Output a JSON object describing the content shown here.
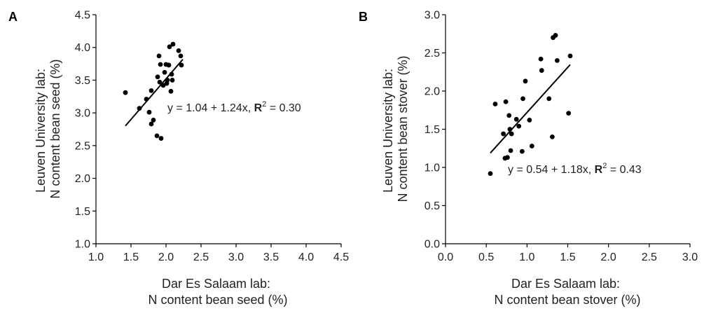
{
  "chart_data": [
    {
      "type": "scatter",
      "panel": "A",
      "xlabel_lines": [
        "Dar Es Salaam lab:",
        "N content bean seed (%)"
      ],
      "ylabel_lines": [
        "Leuven University lab:",
        "N content bean seed (%)"
      ],
      "xlim": [
        1.0,
        4.5
      ],
      "ylim": [
        1.0,
        4.5
      ],
      "xticks": [
        "1.0",
        "1.5",
        "2.0",
        "2.5",
        "3.0",
        "3.5",
        "4.0",
        "4.5"
      ],
      "yticks": [
        "1.0",
        "1.5",
        "2.0",
        "2.5",
        "3.0",
        "3.5",
        "4.0",
        "4.5"
      ],
      "grid": false,
      "points": [
        [
          1.42,
          3.31
        ],
        [
          1.62,
          3.07
        ],
        [
          1.72,
          3.21
        ],
        [
          1.76,
          3.01
        ],
        [
          1.79,
          3.34
        ],
        [
          1.79,
          2.83
        ],
        [
          1.82,
          2.89
        ],
        [
          1.87,
          2.65
        ],
        [
          1.88,
          3.55
        ],
        [
          1.9,
          3.87
        ],
        [
          1.91,
          3.47
        ],
        [
          1.92,
          3.74
        ],
        [
          1.93,
          2.61
        ],
        [
          1.96,
          3.42
        ],
        [
          1.98,
          3.62
        ],
        [
          2.0,
          3.74
        ],
        [
          2.01,
          3.45
        ],
        [
          2.02,
          3.5
        ],
        [
          2.04,
          3.73
        ],
        [
          2.05,
          4.01
        ],
        [
          2.07,
          3.33
        ],
        [
          2.08,
          3.59
        ],
        [
          2.09,
          3.5
        ],
        [
          2.1,
          4.05
        ],
        [
          2.18,
          3.95
        ],
        [
          2.21,
          3.87
        ],
        [
          2.22,
          3.73
        ]
      ],
      "fit_line": {
        "intercept": 1.04,
        "slope": 1.24,
        "x_range": [
          1.42,
          2.24
        ]
      },
      "annotation": {
        "prefix": "y = 1.04 + 1.24x, ",
        "r2_label": "R",
        "r2_sup": "2",
        "r2_value": " = 0.30"
      }
    },
    {
      "type": "scatter",
      "panel": "B",
      "xlabel_lines": [
        "Dar Es Salaam lab:",
        "N content bean stover (%)"
      ],
      "ylabel_lines": [
        "Leuven University lab:",
        "N content bean stover (%)"
      ],
      "xlim": [
        0.0,
        3.0
      ],
      "ylim": [
        0.0,
        3.0
      ],
      "xticks": [
        "0.0",
        "0.5",
        "1.0",
        "1.5",
        "2.0",
        "2.5",
        "3.0"
      ],
      "yticks": [
        "0.0",
        "0.5",
        "1.0",
        "1.5",
        "2.0",
        "2.5",
        "3.0"
      ],
      "grid": false,
      "points": [
        [
          0.55,
          0.92
        ],
        [
          0.61,
          1.83
        ],
        [
          0.71,
          1.44
        ],
        [
          0.73,
          1.12
        ],
        [
          0.74,
          1.86
        ],
        [
          0.76,
          1.13
        ],
        [
          0.78,
          1.68
        ],
        [
          0.79,
          1.5
        ],
        [
          0.8,
          1.22
        ],
        [
          0.81,
          1.44
        ],
        [
          0.87,
          1.63
        ],
        [
          0.9,
          1.54
        ],
        [
          0.94,
          1.21
        ],
        [
          0.95,
          1.9
        ],
        [
          0.98,
          2.13
        ],
        [
          1.03,
          1.62
        ],
        [
          1.06,
          1.28
        ],
        [
          1.17,
          2.42
        ],
        [
          1.18,
          2.27
        ],
        [
          1.27,
          1.9
        ],
        [
          1.31,
          1.4
        ],
        [
          1.32,
          2.7
        ],
        [
          1.35,
          2.73
        ],
        [
          1.37,
          2.4
        ],
        [
          1.51,
          1.71
        ],
        [
          1.53,
          2.46
        ]
      ],
      "fit_line": {
        "intercept": 0.54,
        "slope": 1.18,
        "x_range": [
          0.55,
          1.53
        ]
      },
      "annotation": {
        "prefix": "y = 0.54 + 1.18x, ",
        "r2_label": "R",
        "r2_sup": "2",
        "r2_value": " = 0.43"
      }
    }
  ]
}
